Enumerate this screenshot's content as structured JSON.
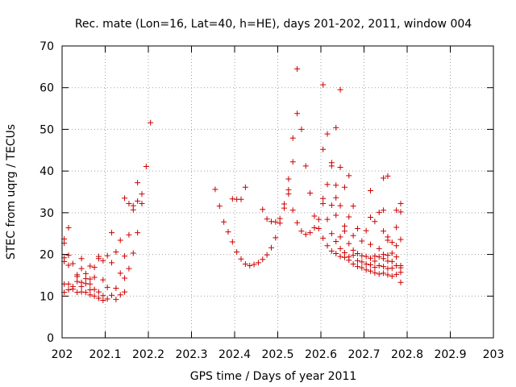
{
  "chart_data": {
    "type": "scatter",
    "title": "Rec. mate (Lon=16, Lat=40, h=HE), days 201-202, 2011, window 004",
    "xlabel": "GPS time / Days of year 2011",
    "ylabel": "STEC from uqrg / TECUs",
    "xlim": [
      202,
      203
    ],
    "ylim": [
      0,
      70
    ],
    "xticks": [
      202,
      202.1,
      202.2,
      202.3,
      202.4,
      202.5,
      202.6,
      202.7,
      202.8,
      202.9,
      203
    ],
    "xtick_labels": [
      "202",
      "202.1",
      "202.2",
      "202.3",
      "202.4",
      "202.5",
      "202.6",
      "202.7",
      "202.8",
      "202.9",
      "203"
    ],
    "yticks": [
      0,
      10,
      20,
      30,
      40,
      50,
      60,
      70
    ],
    "ytick_labels": [
      "0",
      "10",
      "20",
      "30",
      "40",
      "50",
      "60",
      "70"
    ],
    "grid": true,
    "marker": "plus",
    "color": "#cc0000",
    "series": [
      {
        "points": [
          [
            202.005,
            10.9
          ],
          [
            202.005,
            12.9
          ],
          [
            202.005,
            18.3
          ],
          [
            202.005,
            19.2
          ],
          [
            202.005,
            22.7
          ],
          [
            202.005,
            23.7
          ],
          [
            202.015,
            11.5
          ],
          [
            202.015,
            12.9
          ],
          [
            202.015,
            17.4
          ],
          [
            202.015,
            19.8
          ],
          [
            202.015,
            26.4
          ],
          [
            202.025,
            11.7
          ],
          [
            202.025,
            12.3
          ],
          [
            202.025,
            17.8
          ],
          [
            202.035,
            10.9
          ],
          [
            202.035,
            13.5
          ],
          [
            202.035,
            14.7
          ],
          [
            202.035,
            15.1
          ],
          [
            202.045,
            11.0
          ],
          [
            202.045,
            12.3
          ],
          [
            202.045,
            13.3
          ],
          [
            202.045,
            16.6
          ],
          [
            202.045,
            19.0
          ],
          [
            202.055,
            10.9
          ],
          [
            202.055,
            13.0
          ],
          [
            202.055,
            15.4
          ],
          [
            202.055,
            14.2
          ],
          [
            202.065,
            10.3
          ],
          [
            202.065,
            11.5
          ],
          [
            202.065,
            12.9
          ],
          [
            202.065,
            14.1
          ],
          [
            202.065,
            17.2
          ],
          [
            202.075,
            10.0
          ],
          [
            202.075,
            11.6
          ],
          [
            202.075,
            14.5
          ],
          [
            202.075,
            16.9
          ],
          [
            202.085,
            9.5
          ],
          [
            202.085,
            11.0
          ],
          [
            202.085,
            19.0
          ],
          [
            202.085,
            19.5
          ],
          [
            202.095,
            9.0
          ],
          [
            202.095,
            10.1
          ],
          [
            202.095,
            13.9
          ],
          [
            202.095,
            18.5
          ],
          [
            202.105,
            9.3
          ],
          [
            202.105,
            12.1
          ],
          [
            202.105,
            19.7
          ],
          [
            202.115,
            10.2
          ],
          [
            202.115,
            18.0
          ],
          [
            202.115,
            25.2
          ],
          [
            202.125,
            9.2
          ],
          [
            202.125,
            11.9
          ],
          [
            202.125,
            20.6
          ],
          [
            202.135,
            10.3
          ],
          [
            202.135,
            15.5
          ],
          [
            202.135,
            23.4
          ],
          [
            202.145,
            11.0
          ],
          [
            202.145,
            14.3
          ],
          [
            202.145,
            19.6
          ],
          [
            202.145,
            33.5
          ],
          [
            202.155,
            16.6
          ],
          [
            202.155,
            24.7
          ],
          [
            202.155,
            32.2
          ],
          [
            202.165,
            20.3
          ],
          [
            202.165,
            30.7
          ],
          [
            202.165,
            31.7
          ],
          [
            202.175,
            25.2
          ],
          [
            202.175,
            32.8
          ],
          [
            202.175,
            37.2
          ],
          [
            202.185,
            32.2
          ],
          [
            202.185,
            34.5
          ],
          [
            202.195,
            41.1
          ],
          [
            202.205,
            51.6
          ],
          [
            202.355,
            35.6
          ],
          [
            202.365,
            31.6
          ],
          [
            202.375,
            27.8
          ],
          [
            202.385,
            25.4
          ],
          [
            202.395,
            23.0
          ],
          [
            202.395,
            33.3
          ],
          [
            202.405,
            20.6
          ],
          [
            202.405,
            33.2
          ],
          [
            202.415,
            18.9
          ],
          [
            202.415,
            33.2
          ],
          [
            202.425,
            17.7
          ],
          [
            202.425,
            36.1
          ],
          [
            202.435,
            17.3
          ],
          [
            202.445,
            17.6
          ],
          [
            202.455,
            18.0
          ],
          [
            202.465,
            18.8
          ],
          [
            202.465,
            30.8
          ],
          [
            202.475,
            19.9
          ],
          [
            202.475,
            28.5
          ],
          [
            202.485,
            21.6
          ],
          [
            202.485,
            27.9
          ],
          [
            202.495,
            24.0
          ],
          [
            202.495,
            27.8
          ],
          [
            202.505,
            27.5
          ],
          [
            202.505,
            28.6
          ],
          [
            202.515,
            31.1
          ],
          [
            202.515,
            32.1
          ],
          [
            202.525,
            34.5
          ],
          [
            202.525,
            35.5
          ],
          [
            202.525,
            38.1
          ],
          [
            202.535,
            30.6
          ],
          [
            202.535,
            42.2
          ],
          [
            202.535,
            47.9
          ],
          [
            202.545,
            27.6
          ],
          [
            202.545,
            53.8
          ],
          [
            202.545,
            64.5
          ],
          [
            202.555,
            25.6
          ],
          [
            202.555,
            50.0
          ],
          [
            202.565,
            24.8
          ],
          [
            202.565,
            41.2
          ],
          [
            202.575,
            25.2
          ],
          [
            202.575,
            34.7
          ],
          [
            202.585,
            26.4
          ],
          [
            202.585,
            29.2
          ],
          [
            202.595,
            26.2
          ],
          [
            202.595,
            28.4
          ],
          [
            202.605,
            23.9
          ],
          [
            202.605,
            32.2
          ],
          [
            202.605,
            33.4
          ],
          [
            202.605,
            45.2
          ],
          [
            202.605,
            60.7
          ],
          [
            202.615,
            22.1
          ],
          [
            202.615,
            28.4
          ],
          [
            202.615,
            36.8
          ],
          [
            202.615,
            48.9
          ],
          [
            202.625,
            20.8
          ],
          [
            202.625,
            25.0
          ],
          [
            202.625,
            31.8
          ],
          [
            202.625,
            41.2
          ],
          [
            202.625,
            42.0
          ],
          [
            202.635,
            20.2
          ],
          [
            202.635,
            23.1
          ],
          [
            202.635,
            29.4
          ],
          [
            202.635,
            33.6
          ],
          [
            202.635,
            36.6
          ],
          [
            202.635,
            50.4
          ],
          [
            202.645,
            19.5
          ],
          [
            202.645,
            21.4
          ],
          [
            202.645,
            24.2
          ],
          [
            202.645,
            31.7
          ],
          [
            202.645,
            40.9
          ],
          [
            202.645,
            59.5
          ],
          [
            202.655,
            19.3
          ],
          [
            202.655,
            20.4
          ],
          [
            202.655,
            25.6
          ],
          [
            202.655,
            26.8
          ],
          [
            202.655,
            36.1
          ],
          [
            202.665,
            18.6
          ],
          [
            202.665,
            19.4
          ],
          [
            202.665,
            22.6
          ],
          [
            202.665,
            29.0
          ],
          [
            202.665,
            38.9
          ],
          [
            202.675,
            17.7
          ],
          [
            202.675,
            19.8
          ],
          [
            202.675,
            21.0
          ],
          [
            202.675,
            24.5
          ],
          [
            202.675,
            31.6
          ],
          [
            202.685,
            17.1
          ],
          [
            202.685,
            18.5
          ],
          [
            202.685,
            20.2
          ],
          [
            202.685,
            26.2
          ],
          [
            202.695,
            16.8
          ],
          [
            202.695,
            18.2
          ],
          [
            202.695,
            19.7
          ],
          [
            202.695,
            23.2
          ],
          [
            202.705,
            16.3
          ],
          [
            202.705,
            17.7
          ],
          [
            202.705,
            19.5
          ],
          [
            202.705,
            25.7
          ],
          [
            202.715,
            16.0
          ],
          [
            202.715,
            17.5
          ],
          [
            202.715,
            19.1
          ],
          [
            202.715,
            22.4
          ],
          [
            202.715,
            28.9
          ],
          [
            202.715,
            35.3
          ],
          [
            202.725,
            15.6
          ],
          [
            202.725,
            16.9
          ],
          [
            202.725,
            18.4
          ],
          [
            202.725,
            19.6
          ],
          [
            202.725,
            27.9
          ],
          [
            202.735,
            15.3
          ],
          [
            202.735,
            17.3
          ],
          [
            202.735,
            19.4
          ],
          [
            202.735,
            21.4
          ],
          [
            202.735,
            30.1
          ],
          [
            202.745,
            15.5
          ],
          [
            202.745,
            17.1
          ],
          [
            202.745,
            19.0
          ],
          [
            202.745,
            20.0
          ],
          [
            202.745,
            25.6
          ],
          [
            202.745,
            30.6
          ],
          [
            202.745,
            38.3
          ],
          [
            202.755,
            15.1
          ],
          [
            202.755,
            16.6
          ],
          [
            202.755,
            18.4
          ],
          [
            202.755,
            19.8
          ],
          [
            202.755,
            23.4
          ],
          [
            202.755,
            24.2
          ],
          [
            202.755,
            38.8
          ],
          [
            202.765,
            14.8
          ],
          [
            202.765,
            16.7
          ],
          [
            202.765,
            18.3
          ],
          [
            202.765,
            20.3
          ],
          [
            202.765,
            22.9
          ],
          [
            202.775,
            15.2
          ],
          [
            202.775,
            17.3
          ],
          [
            202.775,
            19.4
          ],
          [
            202.775,
            22.1
          ],
          [
            202.775,
            26.5
          ],
          [
            202.775,
            30.6
          ],
          [
            202.785,
            13.3
          ],
          [
            202.785,
            15.7
          ],
          [
            202.785,
            16.8
          ],
          [
            202.785,
            17.3
          ],
          [
            202.785,
            23.6
          ],
          [
            202.785,
            30.2
          ],
          [
            202.785,
            32.2
          ]
        ]
      }
    ]
  }
}
